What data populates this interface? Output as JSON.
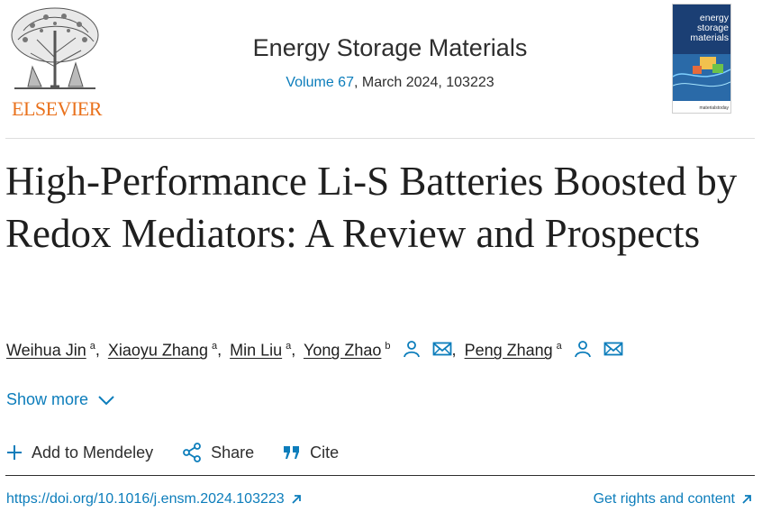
{
  "publisher": {
    "logo_text": "ELSEVIER"
  },
  "journal": {
    "name": "Energy Storage Materials",
    "volume_link": "Volume 67",
    "meta_rest": ", March 2024, 103223",
    "cover_title_lines": [
      "energy",
      "storage",
      "materials"
    ],
    "cover_footer": "materialstoday"
  },
  "article": {
    "title": "High-Performance Li-S Batteries Boosted by Redox Mediators: A Review and Prospects",
    "authors": [
      {
        "name": "Weihua Jin",
        "aff": "a"
      },
      {
        "name": "Xiaoyu Zhang",
        "aff": "a"
      },
      {
        "name": "Min Liu",
        "aff": "a"
      },
      {
        "name": "Yong Zhao",
        "aff": "b"
      },
      {
        "name": "Peng Zhang",
        "aff": "a"
      }
    ]
  },
  "controls": {
    "show_more": "Show more",
    "add_mendeley": "Add to Mendeley",
    "share": "Share",
    "cite": "Cite"
  },
  "links": {
    "doi": "https://doi.org/10.1016/j.ensm.2024.103223",
    "rights": "Get rights and content"
  },
  "colors": {
    "link": "#0c7dbb",
    "elsevier_orange": "#e9711c"
  },
  "icons": [
    "elsevier-tree-logo",
    "person-icon",
    "mail-icon",
    "chevron-down-icon",
    "plus-icon",
    "share-icon",
    "quote-icon",
    "external-link-icon"
  ]
}
